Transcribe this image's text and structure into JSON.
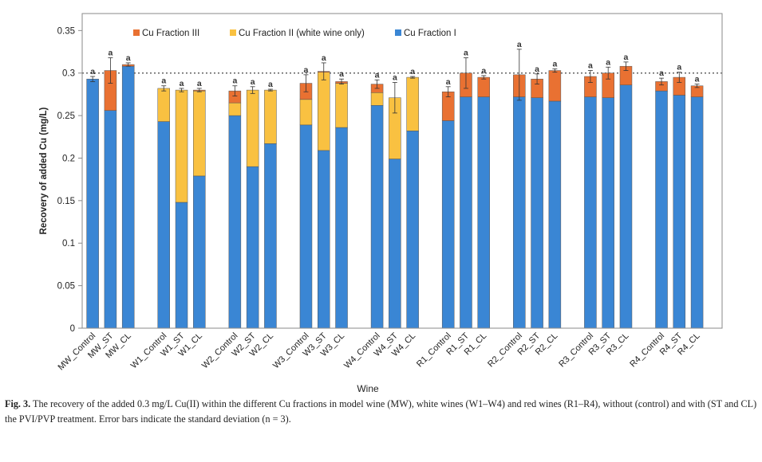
{
  "chart_data": {
    "type": "bar",
    "stacked": true,
    "title": "",
    "xlabel": "Wine",
    "ylabel": "Recovery of added Cu (mg/L)",
    "ylim": [
      0,
      0.37
    ],
    "yticks": [
      0,
      0.05,
      0.1,
      0.15,
      0.2,
      0.25,
      0.3,
      0.35
    ],
    "ytick_labels": [
      "0",
      "0.05",
      "0.1",
      "0.15",
      "0.2",
      "0.25",
      "0.3",
      "0.35"
    ],
    "reference_line": 0.3,
    "legend_position": "top",
    "legend": [
      {
        "name": "Cu Fraction III",
        "color": "#E97132"
      },
      {
        "name": "Cu Fraction II (white wine only)",
        "color": "#F9C141"
      },
      {
        "name": "Cu Fraction I",
        "color": "#3A86D4"
      }
    ],
    "groups": [
      {
        "name": "MW",
        "categories": [
          "MW_Control",
          "MW_ST",
          "MW_CL"
        ]
      },
      {
        "name": "White",
        "categories": [
          "W1_Control",
          "W1_ST",
          "W1_CL",
          "W2_Control",
          "W2_ST",
          "W2_CL",
          "W3_Control",
          "W3_ST",
          "W3_CL",
          "W4_Control",
          "W4_ST",
          "W4_CL"
        ]
      },
      {
        "name": "Red",
        "categories": [
          "R1_Control",
          "R1_ST",
          "R1_CL",
          "R2_Control",
          "R2_ST",
          "R2_CL",
          "R3_Control",
          "R3_ST",
          "R3_CL",
          "R4_Control",
          "R4_ST",
          "R4_CL"
        ]
      }
    ],
    "categories": [
      "MW_Control",
      "MW_ST",
      "MW_CL",
      "W1_Control",
      "W1_ST",
      "W1_CL",
      "W2_Control",
      "W2_ST",
      "W2_CL",
      "W3_Control",
      "W3_ST",
      "W3_CL",
      "W4_Control",
      "W4_ST",
      "W4_CL",
      "R1_Control",
      "R1_ST",
      "R1_CL",
      "R2_Control",
      "R2_ST",
      "R2_CL",
      "R3_Control",
      "R3_ST",
      "R3_CL",
      "R4_Control",
      "R4_ST",
      "R4_CL"
    ],
    "series": [
      {
        "name": "Cu Fraction I",
        "color": "#3A86D4",
        "values": [
          0.293,
          0.256,
          0.308,
          0.243,
          0.148,
          0.179,
          0.25,
          0.19,
          0.217,
          0.239,
          0.209,
          0.236,
          0.262,
          0.199,
          0.232,
          0.244,
          0.272,
          0.272,
          0.272,
          0.271,
          0.267,
          0.272,
          0.271,
          0.286,
          0.279,
          0.274,
          0.272
        ]
      },
      {
        "name": "Cu Fraction II (white wine only)",
        "color": "#F9C141",
        "values": [
          0,
          0,
          0,
          0.039,
          0.132,
          0.1,
          0.015,
          0.09,
          0.063,
          0.03,
          0.092,
          0.052,
          0.015,
          0.072,
          0.063,
          0,
          0,
          0,
          0,
          0,
          0,
          0,
          0,
          0,
          0,
          0,
          0
        ]
      },
      {
        "name": "Cu Fraction III",
        "color": "#E97132",
        "values": [
          0,
          0.047,
          0.002,
          0,
          0,
          0.001,
          0.014,
          0,
          0,
          0.019,
          0.001,
          0.002,
          0.01,
          0,
          0,
          0.034,
          0.028,
          0.023,
          0.026,
          0.022,
          0.036,
          0.024,
          0.029,
          0.022,
          0.011,
          0.021,
          0.013
        ]
      }
    ],
    "error_bars": [
      0.003,
      0.015,
      0.002,
      0.003,
      0.002,
      0.002,
      0.006,
      0.004,
      0.001,
      0.01,
      0.01,
      0.003,
      0.005,
      0.018,
      0.001,
      0.006,
      0.018,
      0.002,
      0.03,
      0.006,
      0.002,
      0.007,
      0.007,
      0.005,
      0.004,
      0.006,
      0.002
    ],
    "data_labels": [
      "a",
      "a",
      "a",
      "a",
      "a",
      "a",
      "a",
      "a",
      "a",
      "a",
      "a",
      "a",
      "a",
      "a",
      "a",
      "a",
      "a",
      "a",
      "a",
      "a",
      "a",
      "a",
      "a",
      "a",
      "a",
      "a",
      "a"
    ]
  },
  "caption": {
    "label": "Fig. 3.",
    "text": "The recovery of the added 0.3 mg/L Cu(II) within the different Cu fractions in model wine (MW), white wines (W1–W4) and red wines (R1–R4), without (control) and with (ST and CL) the PVI/PVP treatment. Error bars indicate the standard deviation (n = 3)."
  }
}
